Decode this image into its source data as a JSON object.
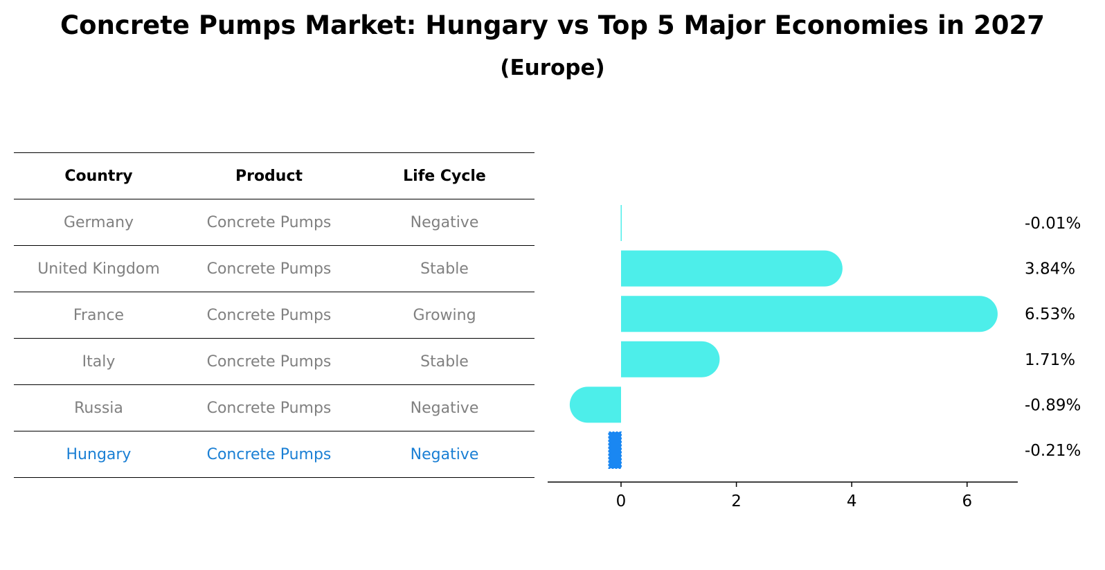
{
  "header": {
    "title": "Concrete Pumps Market: Hungary vs Top 5 Major Economies in 2027",
    "subtitle": "(Europe)"
  },
  "table": {
    "columns": [
      "Country",
      "Product",
      "Life Cycle"
    ],
    "rows": [
      {
        "country": "Germany",
        "product": "Concrete Pumps",
        "life_cycle": "Negative"
      },
      {
        "country": "United Kingdom",
        "product": "Concrete Pumps",
        "life_cycle": "Stable"
      },
      {
        "country": "France",
        "product": "Concrete Pumps",
        "life_cycle": "Growing"
      },
      {
        "country": "Italy",
        "product": "Concrete Pumps",
        "life_cycle": "Stable"
      },
      {
        "country": "Russia",
        "product": "Concrete Pumps",
        "life_cycle": "Negative"
      },
      {
        "country": "Hungary",
        "product": "Concrete Pumps",
        "life_cycle": "Negative"
      }
    ]
  },
  "colors": {
    "bar": "#4deeea",
    "highlight_bar": "#1a87f2",
    "highlight_text": "#1a7fd4",
    "muted_text": "#808080"
  },
  "chart_data": {
    "type": "bar",
    "orientation": "horizontal",
    "categories": [
      "Germany",
      "United Kingdom",
      "France",
      "Italy",
      "Russia",
      "Hungary"
    ],
    "values": [
      -0.01,
      3.84,
      6.53,
      1.71,
      -0.89,
      -0.21
    ],
    "data_labels": [
      "-0.01%",
      "3.84%",
      "6.53%",
      "1.71%",
      "-0.89%",
      "-0.21%"
    ],
    "highlight_index": 5,
    "xlim": [
      -1.25,
      6.9
    ],
    "xticks": [
      0,
      2,
      4,
      6
    ],
    "grid": false
  }
}
